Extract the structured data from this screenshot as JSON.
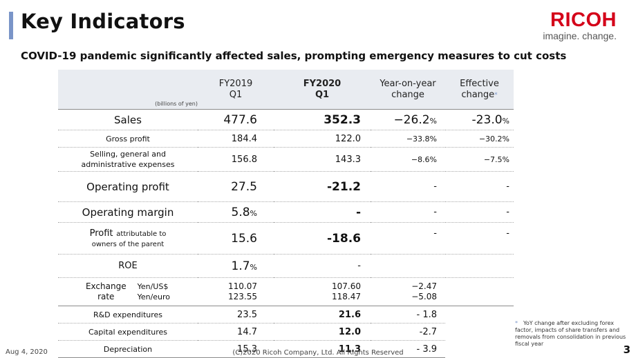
{
  "header": {
    "title": "Key Indicators",
    "subtitle": "COVID-19 pandemic significantly affected sales, prompting emergency measures to cut costs",
    "logo_word": "RICOH",
    "logo_tagline": "imagine. change.",
    "accent_color": "#7a95c8",
    "brand_color": "#d40019"
  },
  "table": {
    "unit_label": "(billions of yen)",
    "columns": [
      {
        "line1": "FY2019",
        "line2": "Q1"
      },
      {
        "line1": "FY2020",
        "line2": "Q1"
      },
      {
        "line1": "Year-on-year",
        "line2": "change"
      },
      {
        "line1": "Effective",
        "line2": "change",
        "marker": "*"
      }
    ],
    "rows": {
      "sales": {
        "label": "Sales",
        "fy2019": "477.6",
        "fy2020": "352.3",
        "yoy": "−26.2",
        "yoy_unit": "%",
        "eff": "-23.0",
        "eff_unit": "%"
      },
      "gross_profit": {
        "label": "Gross profit",
        "fy2019": "184.4",
        "fy2020": "122.0",
        "yoy": "−33.8%",
        "eff": "−30.2%"
      },
      "sga": {
        "label_line1": "Selling, general and",
        "label_line2": "administrative expenses",
        "fy2019": "156.8",
        "fy2020": "143.3",
        "yoy": "−8.6%",
        "eff": "−7.5%"
      },
      "operating_profit": {
        "label": "Operating profit",
        "fy2019": "27.5",
        "fy2020": "-21.2",
        "yoy": "-",
        "eff": "-"
      },
      "operating_margin": {
        "label": "Operating margin",
        "fy2019": "5.8",
        "fy2019_unit": "%",
        "fy2020": "-",
        "yoy": "-",
        "eff": "-"
      },
      "profit_parent": {
        "label_main": "Profit",
        "label_rest": "attributable to",
        "label_line2": "owners of the parent",
        "fy2019": "15.6",
        "fy2020": "-18.6",
        "yoy": "-",
        "eff": "-"
      },
      "roe": {
        "label": "ROE",
        "fy2019": "1.7",
        "fy2019_unit": "%",
        "fy2020": "-"
      },
      "exchange": {
        "label_line1": "Exchange",
        "label_line2": "rate",
        "pair1": "Yen/US$",
        "pair2": "Yen/euro",
        "fy2019_1": "110.07",
        "fy2019_2": "123.55",
        "fy2020_1": "107.60",
        "fy2020_2": "118.47",
        "yoy_1": "−2.47",
        "yoy_2": "−5.08"
      },
      "rnd": {
        "label": "R&D expenditures",
        "fy2019": "23.5",
        "fy2020": "21.6",
        "yoy": "- 1.8"
      },
      "capex": {
        "label": "Capital expenditures",
        "fy2019": "14.7",
        "fy2020": "12.0",
        "yoy": "-2.7"
      },
      "depreciation": {
        "label": "Depreciation",
        "fy2019": "15.3",
        "fy2020": "11.3",
        "yoy": "- 3.9"
      }
    }
  },
  "footnote": {
    "marker": "*",
    "text": "YoY change after excluding forex factor, impacts of share transfers and removals from consolidation in previous fiscal year"
  },
  "footer": {
    "date": "Aug 4, 2020",
    "copyright": "(C)2020 Ricoh Company, Ltd. All Rights Reserved",
    "page": "3"
  }
}
